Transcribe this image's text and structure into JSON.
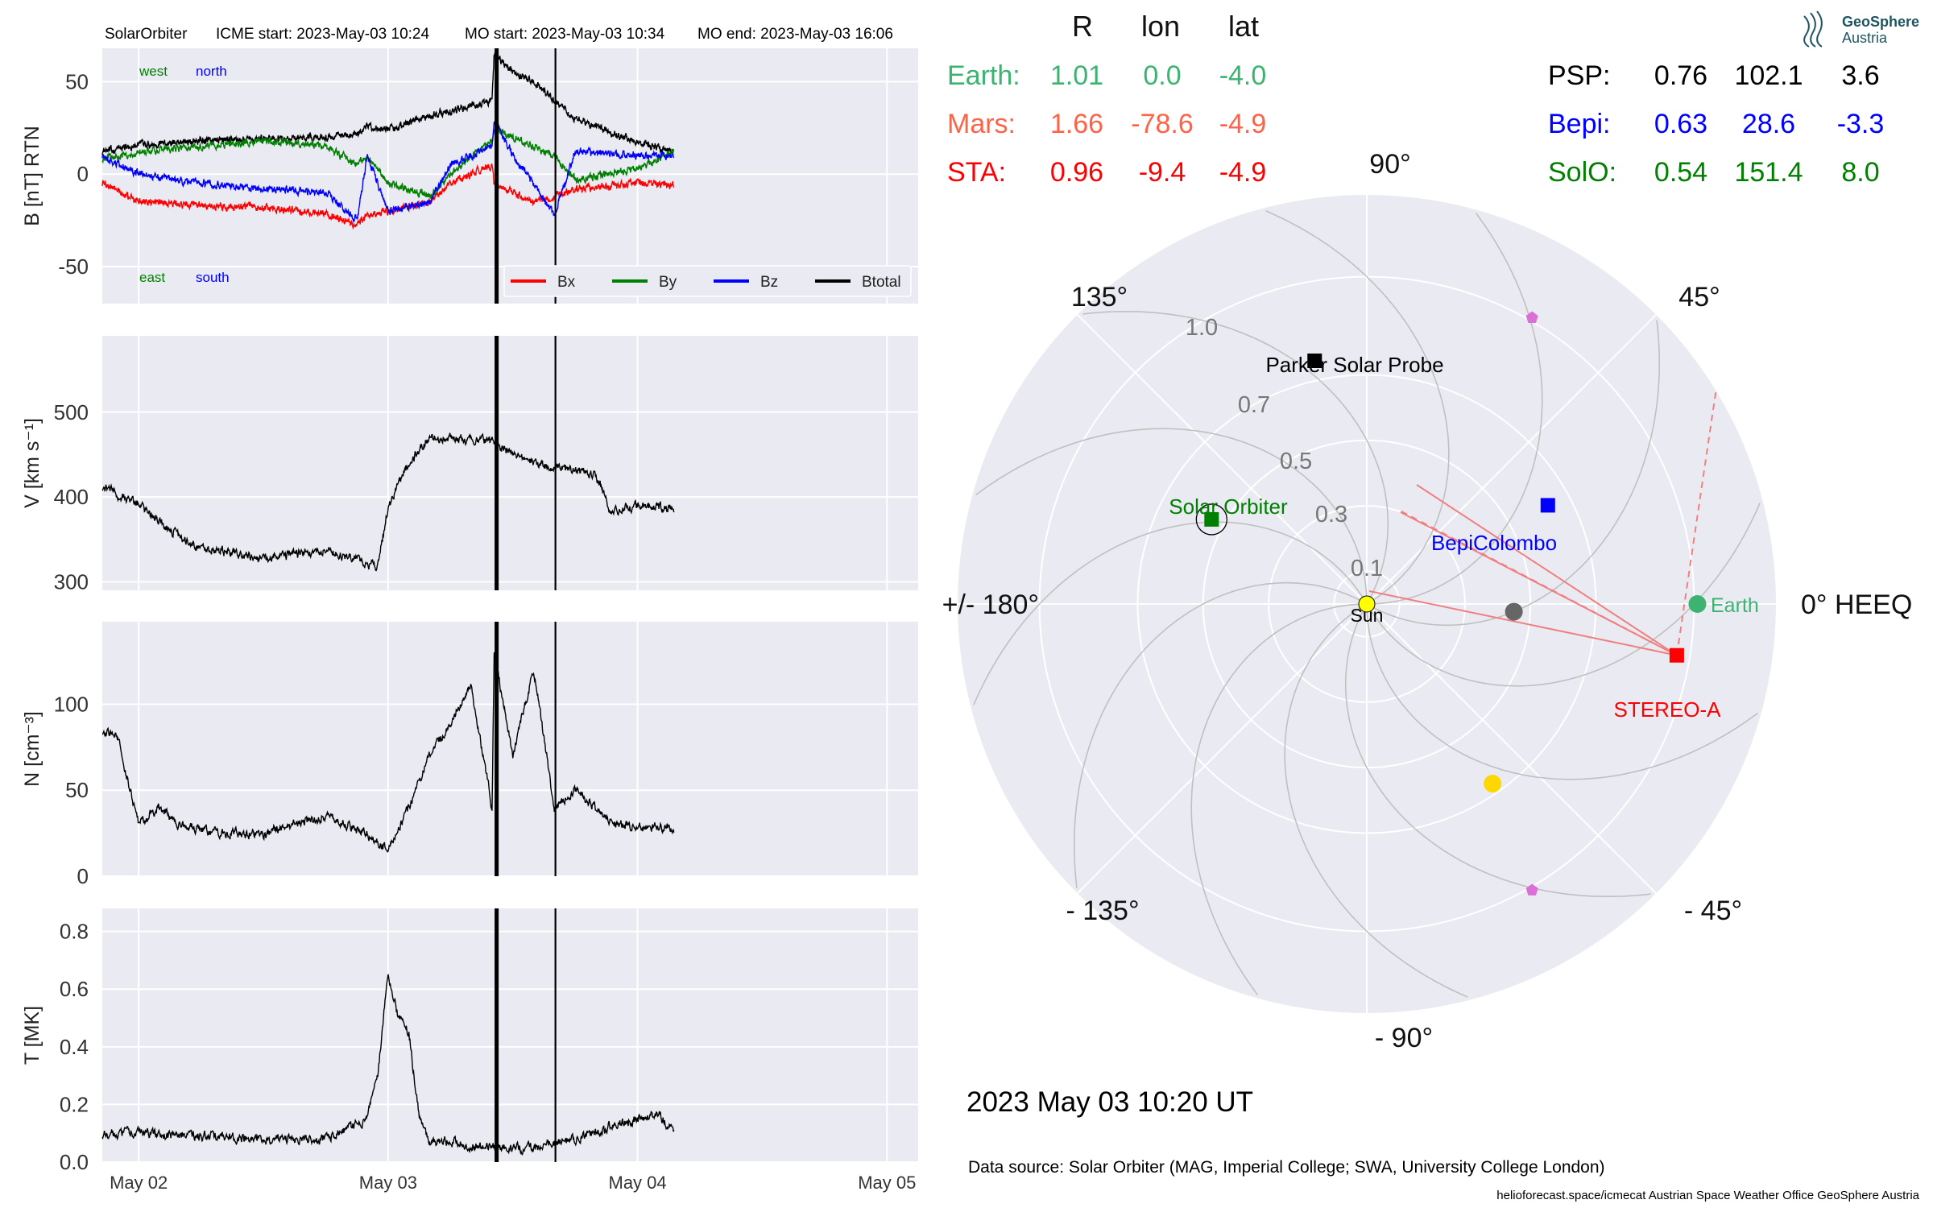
{
  "colors": {
    "panel_bg": "#eaeaf2",
    "grid": "#ffffff",
    "bx": "#ff0000",
    "by": "#008000",
    "bz": "#0000ff",
    "btotal": "#000000",
    "earth": "#3cb371",
    "mars": "#ff6347",
    "sta": "#ff0000",
    "psp": "#000000",
    "bepi": "#0000ff",
    "solo": "#008000",
    "sun": "#ffff00",
    "venus": "#666666",
    "mercury": "#ffd700",
    "l5": "#da70d6",
    "fieldline": "#c0c0c0",
    "connection": "#f08080"
  },
  "header": {
    "spacecraft": "SolarOrbiter",
    "icme_start": "ICME start: 2023-May-03 10:24",
    "mo_start": "MO start: 2023-May-03 10:34",
    "mo_end": "MO end: 2023-May-03 16:06"
  },
  "chart_data": [
    {
      "type": "line",
      "panel": "magnetic field",
      "ylabel": "B [nT] RTN",
      "ylim": [
        -70,
        68
      ],
      "yticks": [
        50,
        0,
        -50
      ],
      "xlim": [
        "2023-05-01T20:30",
        "2023-05-05T03:00"
      ],
      "xticks": [
        "May 02",
        "May 03",
        "May 04",
        "May 05"
      ],
      "corner_labels": {
        "top": [
          "west",
          "north"
        ],
        "bottom": [
          "east",
          "south"
        ]
      },
      "legend": "lower right",
      "event_markers": [
        "2023-05-03T10:24",
        "2023-05-03T10:34",
        "2023-05-03T16:06"
      ],
      "series": [
        {
          "name": "Btotal",
          "color": "#000000",
          "t": [
            -3.5,
            0,
            6,
            12,
            18,
            21,
            22,
            24,
            28,
            30,
            34,
            34.2,
            36,
            38,
            40,
            42,
            48,
            51.5
          ],
          "v": [
            12,
            16,
            18,
            19,
            20,
            22,
            26,
            24,
            32,
            34,
            40,
            65,
            55,
            50,
            40,
            30,
            17,
            12
          ]
        },
        {
          "name": "Bx",
          "color": "#ff0000",
          "t": [
            -3.5,
            0,
            6,
            12,
            18,
            21,
            22,
            24,
            28,
            30,
            34,
            34.2,
            36,
            38,
            40,
            42,
            48,
            51.5
          ],
          "v": [
            -5,
            -15,
            -17,
            -18,
            -21,
            -28,
            -22,
            -20,
            -15,
            -5,
            5,
            -5,
            -10,
            -15,
            -12,
            -8,
            -5,
            -6
          ]
        },
        {
          "name": "By",
          "color": "#008000",
          "t": [
            -3.5,
            0,
            6,
            12,
            18,
            21,
            22,
            24,
            28,
            30,
            34,
            34.2,
            36,
            38,
            40,
            42,
            48,
            51.5
          ],
          "v": [
            8,
            12,
            15,
            18,
            15,
            5,
            10,
            -5,
            -12,
            0,
            18,
            25,
            20,
            15,
            10,
            -3,
            3,
            12
          ]
        },
        {
          "name": "Bz",
          "color": "#0000ff",
          "t": [
            -3.5,
            0,
            6,
            12,
            18,
            21,
            22,
            24,
            28,
            30,
            34,
            34.2,
            36,
            38,
            40,
            42,
            48,
            51.5
          ],
          "v": [
            10,
            0,
            -5,
            -8,
            -10,
            -25,
            10,
            -20,
            -15,
            5,
            15,
            30,
            10,
            -5,
            -22,
            12,
            10,
            10
          ]
        }
      ]
    },
    {
      "type": "line",
      "panel": "speed",
      "ylabel": "V [km s⁻¹]",
      "ylim": [
        290,
        590
      ],
      "yticks": [
        500,
        400,
        300
      ],
      "series": [
        {
          "name": "V",
          "color": "#000000",
          "t": [
            -3.5,
            0,
            3,
            6,
            12,
            18,
            23,
            24,
            26,
            28,
            30,
            34,
            36,
            38,
            40,
            44,
            45.5,
            48,
            51.5
          ],
          "v": [
            412,
            392,
            360,
            340,
            328,
            338,
            318,
            388,
            440,
            470,
            470,
            465,
            450,
            440,
            435,
            425,
            380,
            392,
            385
          ]
        }
      ]
    },
    {
      "type": "line",
      "panel": "density",
      "ylabel": "N [cm⁻³]",
      "ylim": [
        0,
        148
      ],
      "yticks": [
        100,
        50,
        0
      ],
      "series": [
        {
          "name": "N",
          "color": "#000000",
          "t": [
            -3.5,
            -2,
            0,
            2,
            4,
            8,
            12,
            18,
            22,
            24,
            26,
            28,
            30,
            32,
            34,
            34.2,
            36,
            38,
            40,
            42,
            46,
            51.5
          ],
          "v": [
            85,
            80,
            30,
            40,
            30,
            25,
            25,
            35,
            25,
            15,
            40,
            70,
            90,
            110,
            40,
            130,
            70,
            120,
            40,
            50,
            30,
            28
          ]
        }
      ]
    },
    {
      "type": "line",
      "panel": "temperature",
      "ylabel": "T [MK]",
      "ylim": [
        0,
        0.88
      ],
      "yticks": [
        0.8,
        0.6,
        0.4,
        0.2,
        0.0
      ],
      "series": [
        {
          "name": "T",
          "color": "#000000",
          "t": [
            -3.5,
            0,
            6,
            12,
            18,
            22,
            23,
            24,
            25,
            26,
            27,
            28,
            30,
            34,
            38,
            42,
            46,
            50,
            51.5
          ],
          "v": [
            0.1,
            0.1,
            0.09,
            0.08,
            0.08,
            0.15,
            0.3,
            0.65,
            0.5,
            0.45,
            0.15,
            0.07,
            0.07,
            0.05,
            0.05,
            0.08,
            0.13,
            0.17,
            0.1
          ]
        }
      ]
    },
    {
      "type": "scatter",
      "panel": "heliospheric positions",
      "coordinate_system": "0° HEEQ",
      "date_label": "2023 May 03  10:20 UT",
      "angle_labels": [
        "90°",
        "45°",
        "0° HEEQ",
        "- 45°",
        "- 90°",
        "- 135°",
        "+/- 180°",
        "135°"
      ],
      "radial_labels": [
        "1.0",
        "0.7",
        "0.5",
        "0.3",
        "0.1"
      ],
      "columns": [
        "R",
        "lon",
        "lat"
      ],
      "bodies": [
        {
          "name": "Earth",
          "r": 1.01,
          "lon": 0.0,
          "lat": -4.0,
          "color": "#3cb371",
          "marker": "circle",
          "label": "Earth"
        },
        {
          "name": "STEREO-A",
          "r": 0.96,
          "lon": -9.4,
          "lat": -4.9,
          "color": "#ff0000",
          "marker": "square",
          "label": "STEREO-A"
        },
        {
          "name": "BepiColombo",
          "r": 0.63,
          "lon": 28.6,
          "lat": -3.3,
          "color": "#0000ff",
          "marker": "square",
          "label": "BepiColombo"
        },
        {
          "name": "Parker Solar Probe",
          "r": 0.76,
          "lon": 102.1,
          "lat": 3.6,
          "color": "#000000",
          "marker": "square",
          "label": "Parker Solar Probe"
        },
        {
          "name": "Solar Orbiter",
          "r": 0.54,
          "lon": 151.4,
          "lat": 8.0,
          "color": "#008000",
          "marker": "square",
          "label": "Solar Orbiter"
        },
        {
          "name": "Venus",
          "r": 0.45,
          "lon": -3.0,
          "color": "#666666",
          "marker": "circle",
          "label": ""
        },
        {
          "name": "Mercury",
          "r": 0.67,
          "lon": -55.0,
          "color": "#ffd700",
          "marker": "circle",
          "label": ""
        },
        {
          "name": "L4",
          "r": 1.01,
          "lon": 60.0,
          "color": "#da70d6",
          "marker": "pentagon",
          "label": ""
        },
        {
          "name": "L5",
          "r": 1.01,
          "lon": -60.0,
          "color": "#da70d6",
          "marker": "pentagon",
          "label": ""
        }
      ]
    }
  ],
  "position_table": {
    "headers": [
      "R",
      "lon",
      "lat"
    ],
    "left": [
      {
        "name": "Earth:",
        "r": "1.01",
        "lon": "0.0",
        "lat": "-4.0",
        "color": "#3cb371"
      },
      {
        "name": "Mars:",
        "r": "1.66",
        "lon": "-78.6",
        "lat": "-4.9",
        "color": "#ff6347"
      },
      {
        "name": "STA:",
        "r": "0.96",
        "lon": "-9.4",
        "lat": "-4.9",
        "color": "#ff0000"
      }
    ],
    "right": [
      {
        "name": "PSP:",
        "r": "0.76",
        "lon": "102.1",
        "lat": "3.6",
        "color": "#000000"
      },
      {
        "name": "Bepi:",
        "r": "0.63",
        "lon": "28.6",
        "lat": "-3.3",
        "color": "#0000ff"
      },
      {
        "name": "SolO:",
        "r": "0.54",
        "lon": "151.4",
        "lat": "8.0",
        "color": "#008000"
      }
    ]
  },
  "sun_label": "Sun",
  "logo": {
    "line1": "GeoSphere",
    "line2": "Austria"
  },
  "footer": {
    "date": "2023 May 03  10:20 UT",
    "source": "Data source: Solar Orbiter (MAG, Imperial College; SWA, University College London)",
    "credits": "helioforecast.space/icmecat   Austrian Space Weather Office   GeoSphere Austria"
  }
}
